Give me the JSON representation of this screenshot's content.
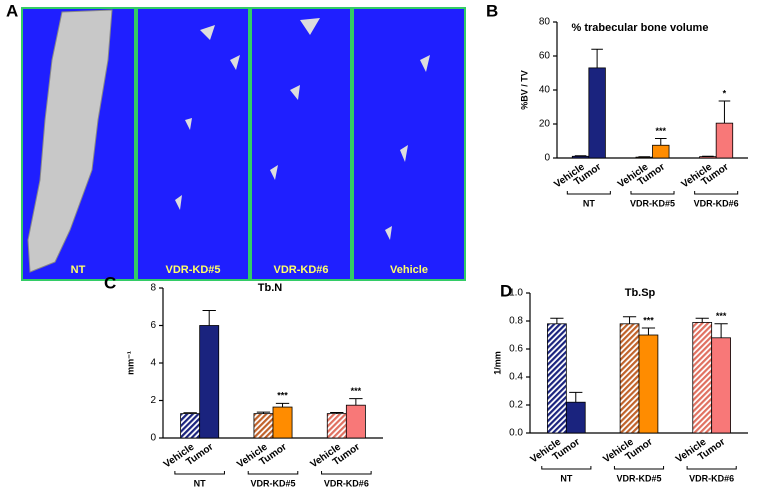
{
  "panel_labels": [
    "A",
    "B",
    "C",
    "D"
  ],
  "images": {
    "labels": [
      "NT",
      "VDR-KD#5",
      "VDR-KD#6",
      "Vehicle"
    ]
  },
  "chart_data": [
    {
      "type": "bar",
      "title": "%  trabecular bone volume",
      "ylabel": "%BV / TV",
      "groups": [
        "NT",
        "VDR-KD#5",
        "VDR-KD#6"
      ],
      "categories": [
        "Vehicle",
        "Tumor",
        "Vehicle",
        "Tumor",
        "Vehicle",
        "Tumor"
      ],
      "values": [
        1,
        53,
        0.5,
        7.5,
        0.8,
        20.5
      ],
      "errors": [
        0.3,
        11,
        0.2,
        4,
        0.2,
        13
      ],
      "colors": [
        "#1a237e",
        "#1a237e",
        "#ff8c00",
        "#ff8c00",
        "#f87878",
        "#f87878"
      ],
      "hatched": [
        false,
        false,
        false,
        false,
        false,
        false
      ],
      "annotations": [
        null,
        null,
        null,
        "***",
        null,
        "*"
      ],
      "ylim": [
        0,
        80
      ],
      "yticks": [
        0,
        20,
        40,
        60,
        80
      ]
    },
    {
      "type": "bar",
      "title": "Tb.N",
      "ylabel": "mm⁻¹",
      "groups": [
        "NT",
        "VDR-KD#5",
        "VDR-KD#6"
      ],
      "categories": [
        "Vehicle",
        "Tumor",
        "Vehicle",
        "Tumor",
        "Vehicle",
        "Tumor"
      ],
      "values": [
        1.3,
        6.0,
        1.3,
        1.65,
        1.3,
        1.75
      ],
      "errors": [
        0.05,
        0.8,
        0.08,
        0.2,
        0.06,
        0.35
      ],
      "colors": [
        "#1a237e",
        "#1a237e",
        "#c0622a",
        "#ff8c00",
        "#e07060",
        "#f87878"
      ],
      "hatched": [
        true,
        false,
        true,
        false,
        true,
        false
      ],
      "annotations": [
        null,
        null,
        null,
        "***",
        null,
        "***"
      ],
      "ylim": [
        0,
        8
      ],
      "yticks": [
        0,
        2,
        4,
        6,
        8
      ]
    },
    {
      "type": "bar",
      "title": "Tb.Sp",
      "ylabel": "1/mm",
      "groups": [
        "NT",
        "VDR-KD#5",
        "VDR-KD#6"
      ],
      "categories": [
        "Vehicle",
        "Tumor",
        "Vehicle",
        "Tumor",
        "Vehicle",
        "Tumor"
      ],
      "values": [
        0.78,
        0.22,
        0.78,
        0.7,
        0.79,
        0.68
      ],
      "errors": [
        0.04,
        0.07,
        0.05,
        0.05,
        0.03,
        0.1
      ],
      "colors": [
        "#1a237e",
        "#1a237e",
        "#c0622a",
        "#ff8c00",
        "#e07060",
        "#f87878"
      ],
      "hatched": [
        true,
        false,
        true,
        false,
        true,
        false
      ],
      "annotations": [
        null,
        null,
        null,
        "***",
        null,
        "***"
      ],
      "ylim": [
        0,
        1.0
      ],
      "yticks": [
        {
          "value": 0,
          "label": "0.0"
        },
        0.2,
        0.4,
        0.6,
        0.8,
        {
          "value": 1.0,
          "label": "1.0"
        }
      ]
    }
  ]
}
